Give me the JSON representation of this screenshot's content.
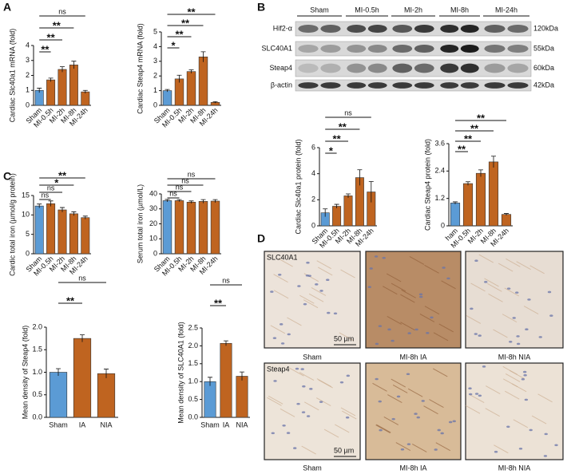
{
  "panel_labels": [
    "A",
    "B",
    "C",
    "D"
  ],
  "chart_data": [
    {
      "type": "bar",
      "ylabel": "Cardiac Slc40a1 mRNA (fold)",
      "categories": [
        "Sham",
        "MI-0.5h",
        "MI-2h",
        "MI-8h",
        "MI-24h"
      ],
      "values": [
        1.0,
        1.7,
        2.4,
        2.7,
        0.9
      ],
      "errors": [
        0.15,
        0.12,
        0.18,
        0.25,
        0.1
      ],
      "colors": [
        "#5b9bd5",
        "#bf6420",
        "#bf6420",
        "#bf6420",
        "#bf6420"
      ],
      "ylim": [
        0,
        4
      ],
      "yticks": [
        0,
        1,
        2,
        3,
        4
      ],
      "comparisons": [
        {
          "to": "MI-0.5h",
          "label": "**"
        },
        {
          "to": "MI-2h",
          "label": "**"
        },
        {
          "to": "MI-8h",
          "label": "**"
        },
        {
          "to": "MI-24h",
          "label": "ns"
        }
      ]
    },
    {
      "type": "bar",
      "ylabel": "Cardiac Steap4 mRNA (fold)",
      "categories": [
        "Sham",
        "MI-0.5h",
        "MI-2h",
        "MI-8h",
        "MI-24h"
      ],
      "values": [
        1.0,
        1.8,
        2.3,
        3.3,
        0.2
      ],
      "errors": [
        0.08,
        0.25,
        0.12,
        0.35,
        0.05
      ],
      "colors": [
        "#5b9bd5",
        "#bf6420",
        "#bf6420",
        "#bf6420",
        "#bf6420"
      ],
      "ylim": [
        0,
        5
      ],
      "yticks": [
        0,
        1,
        2,
        3,
        4,
        5
      ],
      "comparisons": [
        {
          "to": "MI-0.5h",
          "label": "*"
        },
        {
          "to": "MI-2h",
          "label": "**"
        },
        {
          "to": "MI-8h",
          "label": "**"
        },
        {
          "to": "MI-24h",
          "label": "**"
        }
      ]
    },
    {
      "type": "bar",
      "ylabel": "Cardiac Slc40a1 protein (fold)",
      "categories": [
        "Sham",
        "MI-0.5h",
        "MI-2h",
        "MI-8h",
        "MI-24h"
      ],
      "values": [
        1.0,
        1.5,
        2.3,
        3.7,
        2.6
      ],
      "errors": [
        0.3,
        0.15,
        0.15,
        0.6,
        0.8
      ],
      "colors": [
        "#5b9bd5",
        "#bf6420",
        "#bf6420",
        "#bf6420",
        "#bf6420"
      ],
      "ylim": [
        0,
        6
      ],
      "yticks": [
        0,
        2,
        4,
        6
      ],
      "comparisons": [
        {
          "to": "MI-0.5h",
          "label": "*"
        },
        {
          "to": "MI-2h",
          "label": "**"
        },
        {
          "to": "MI-8h",
          "label": "**"
        },
        {
          "to": "MI-24h",
          "label": "ns"
        }
      ]
    },
    {
      "type": "bar",
      "ylabel": "Cardiac Steap4 protein (fold)",
      "categories": [
        "ham",
        "MI-0.5h",
        "MI-2h",
        "MI-8h",
        "MI-24h"
      ],
      "values": [
        1.0,
        1.85,
        2.3,
        2.8,
        0.5
      ],
      "errors": [
        0.05,
        0.08,
        0.15,
        0.25,
        0.04
      ],
      "colors": [
        "#5b9bd5",
        "#bf6420",
        "#bf6420",
        "#bf6420",
        "#bf6420"
      ],
      "ylim": [
        0,
        3.6
      ],
      "yticks": [
        0,
        1.2,
        2.4,
        3.6
      ],
      "comparisons": [
        {
          "to": "MI-0.5h",
          "label": "**"
        },
        {
          "to": "MI-2h",
          "label": "**"
        },
        {
          "to": "MI-8h",
          "label": "**"
        },
        {
          "to": "MI-24h",
          "label": "**"
        }
      ]
    },
    {
      "type": "bar",
      "ylabel": "Cardic total iron (µmol/g protein)",
      "categories": [
        "Sham",
        "MI-0.5h",
        "MI-2h",
        "MI-8h",
        "MI-24h"
      ],
      "values": [
        12.3,
        12.9,
        11.3,
        10.3,
        9.3
      ],
      "errors": [
        0.5,
        0.7,
        0.6,
        0.5,
        0.4
      ],
      "colors": [
        "#5b9bd5",
        "#bf6420",
        "#bf6420",
        "#bf6420",
        "#bf6420"
      ],
      "ylim": [
        0,
        15
      ],
      "yticks": [
        0,
        5,
        10,
        15
      ],
      "comparisons": [
        {
          "to": "MI-0.5h",
          "label": "ns"
        },
        {
          "to": "MI-2h",
          "label": "ns"
        },
        {
          "to": "MI-8h",
          "label": "*"
        },
        {
          "to": "MI-24h",
          "label": "**"
        }
      ]
    },
    {
      "type": "bar",
      "ylabel": "Serum total iron (µmol/L)",
      "categories": [
        "Sham",
        "MI-0.5h",
        "MI-2h",
        "MI-8h",
        "MI-24h"
      ],
      "values": [
        35.5,
        35.5,
        34.5,
        35.0,
        35.2
      ],
      "errors": [
        0.8,
        0.7,
        0.8,
        1.2,
        1.0
      ],
      "colors": [
        "#5b9bd5",
        "#bf6420",
        "#bf6420",
        "#bf6420",
        "#bf6420"
      ],
      "ylim": [
        0,
        40
      ],
      "yticks": [
        0,
        10,
        20,
        30,
        40
      ],
      "comparisons": [
        {
          "to": "MI-0.5h",
          "label": "ns"
        },
        {
          "to": "MI-2h",
          "label": "ns"
        },
        {
          "to": "MI-8h",
          "label": "ns"
        },
        {
          "to": "MI-24h",
          "label": "ns"
        }
      ]
    },
    {
      "type": "bar",
      "ylabel": "Mean density of Steap4 (fold)",
      "categories": [
        "Sham",
        "IA",
        "NIA"
      ],
      "values": [
        1.0,
        1.75,
        0.97
      ],
      "errors": [
        0.08,
        0.08,
        0.1
      ],
      "colors": [
        "#5b9bd5",
        "#bf6420",
        "#bf6420"
      ],
      "ylim": [
        0,
        2
      ],
      "yticks": [
        {
          "value": 0,
          "label": "0.0"
        },
        0.5,
        {
          "value": 1,
          "label": "1.0"
        },
        1.5,
        {
          "value": 2,
          "label": "2.0"
        }
      ],
      "comparisons": [
        {
          "to": "IA",
          "label": "**"
        },
        {
          "to": "NIA",
          "label": "ns"
        }
      ]
    },
    {
      "type": "bar",
      "ylabel": "Mean density of SLC40A1 (fold)",
      "categories": [
        "Sham",
        "IA",
        "NIA"
      ],
      "values": [
        1.0,
        2.07,
        1.15
      ],
      "errors": [
        0.12,
        0.07,
        0.12
      ],
      "colors": [
        "#5b9bd5",
        "#bf6420",
        "#bf6420"
      ],
      "ylim": [
        0,
        2.5
      ],
      "yticks": [
        {
          "value": 0,
          "label": "0.0"
        },
        0.5,
        {
          "value": 1,
          "label": "1.0"
        },
        1.5,
        {
          "value": 2,
          "label": "2.0"
        },
        2.5
      ],
      "comparisons": [
        {
          "to": "IA",
          "label": "**"
        },
        {
          "to": "NIA",
          "label": "ns"
        }
      ]
    }
  ],
  "blot": {
    "lanes": [
      "Sham",
      "MI-0.5h",
      "MI-2h",
      "MI-8h",
      "MI-24h"
    ],
    "rows": [
      {
        "name": "Hif2-α",
        "size": "120kDa"
      },
      {
        "name": "SLC40A1",
        "size": "55kDa"
      },
      {
        "name": "Steap4",
        "size": "60kDa"
      },
      {
        "name": "β-actin",
        "size": "42kDa"
      }
    ]
  },
  "histology": {
    "rows": [
      "SLC40A1",
      "Steap4"
    ],
    "columns": [
      "Sham",
      "MI-8h IA",
      "MI-8h NIA"
    ],
    "scale_bar": "50 µm"
  }
}
